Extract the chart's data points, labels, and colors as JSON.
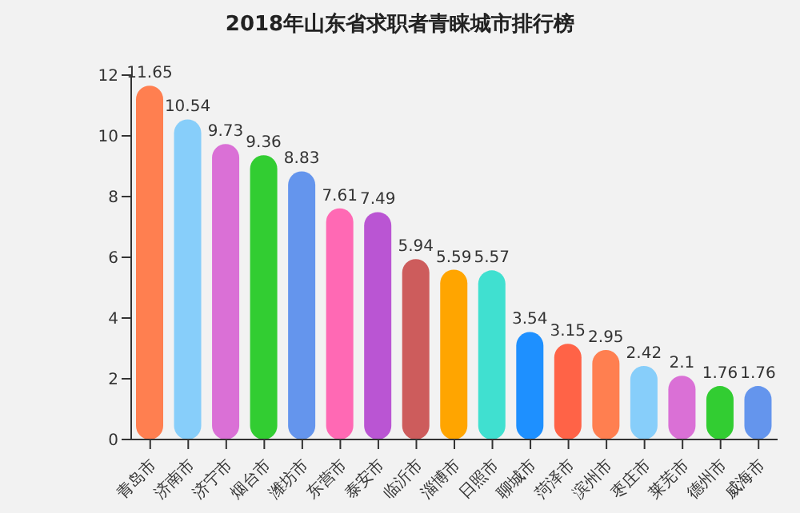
{
  "chart_data": {
    "type": "bar",
    "title": "2018年山东省求职者青睐城市排行榜",
    "categories": [
      "青岛市",
      "济南市",
      "济宁市",
      "烟台市",
      "潍坊市",
      "东营市",
      "泰安市",
      "临沂市",
      "淄博市",
      "日照市",
      "聊城市",
      "菏泽市",
      "滨州市",
      "枣庄市",
      "莱芜市",
      "德州市",
      "威海市"
    ],
    "values": [
      11.65,
      10.54,
      9.73,
      9.36,
      8.83,
      7.61,
      7.49,
      5.94,
      5.59,
      5.57,
      3.54,
      3.15,
      2.95,
      2.42,
      2.1,
      1.76,
      1.76
    ],
    "colors": [
      "#ff7f50",
      "#87cefa",
      "#da70d6",
      "#32cd32",
      "#6495ed",
      "#ff69b4",
      "#ba55d3",
      "#cd5c5c",
      "#ffa500",
      "#40e0d0",
      "#1e90ff",
      "#ff6347",
      "#ff7f50",
      "#87cefa",
      "#da70d6",
      "#32cd32",
      "#6495ed"
    ],
    "ylim": [
      0,
      12
    ],
    "yticks": [
      0,
      2,
      4,
      6,
      8,
      10,
      12
    ],
    "data_labels": true
  }
}
